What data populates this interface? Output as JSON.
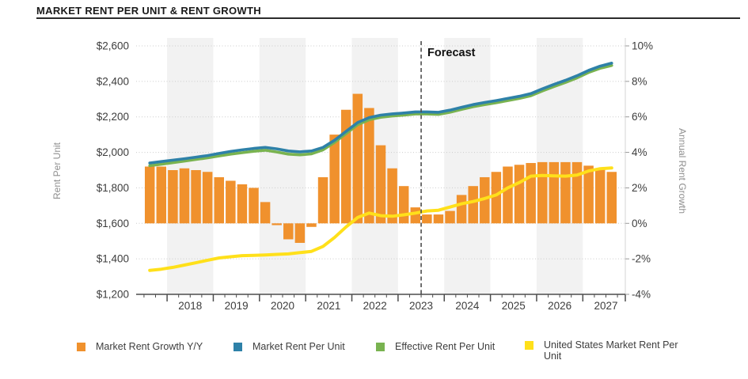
{
  "header": {
    "title": "MARKET RENT PER UNIT & RENT GROWTH"
  },
  "chart_data": {
    "type": "combo",
    "title": "MARKET RENT PER UNIT & RENT GROWTH",
    "forecast": {
      "label": "Forecast",
      "t": 2023.5
    },
    "x_axis": {
      "domain": [
        2017.33,
        2027.92
      ],
      "tick_labels": [
        "2018",
        "2019",
        "2020",
        "2021",
        "2022",
        "2023",
        "2024",
        "2025",
        "2026",
        "2027"
      ],
      "shaded_years": [
        2018,
        2020,
        2022,
        2024,
        2026
      ]
    },
    "y_left": {
      "label": "Rent Per Unit",
      "min": 1200,
      "max": 2600,
      "step": 200,
      "tick_labels": [
        "$2,600",
        "$2,400",
        "$2,200",
        "$2,000",
        "$1,800",
        "$1,600",
        "$1,400",
        "$1,200"
      ]
    },
    "y_right": {
      "label": "Annual Rent Growth",
      "min": -4,
      "max": 10,
      "step": 2,
      "tick_labels": [
        "10%",
        "8%",
        "6%",
        "4%",
        "2%",
        "0%",
        "-2%",
        "-4%"
      ]
    },
    "quarters_start_t": 2017.625,
    "quarters": [
      "2017 Q3",
      "2017 Q4",
      "2018 Q1",
      "2018 Q2",
      "2018 Q3",
      "2018 Q4",
      "2019 Q1",
      "2019 Q2",
      "2019 Q3",
      "2019 Q4",
      "2020 Q1",
      "2020 Q2",
      "2020 Q3",
      "2020 Q4",
      "2021 Q1",
      "2021 Q2",
      "2021 Q3",
      "2021 Q4",
      "2022 Q1",
      "2022 Q2",
      "2022 Q3",
      "2022 Q4",
      "2023 Q1",
      "2023 Q2",
      "2023 Q3",
      "2023 Q4",
      "2024 Q1",
      "2024 Q2",
      "2024 Q3",
      "2024 Q4",
      "2025 Q1",
      "2025 Q2",
      "2025 Q3",
      "2025 Q4",
      "2026 Q1",
      "2026 Q2",
      "2026 Q3",
      "2026 Q4",
      "2027 Q1",
      "2027 Q2",
      "2027 Q3"
    ],
    "series": [
      {
        "name": "Market Rent Growth Y/Y",
        "key": "market-rent-growth-yy",
        "type": "bar",
        "axis": "right",
        "color": "#F0912D",
        "values": [
          3.2,
          3.2,
          3.0,
          3.1,
          3.0,
          2.9,
          2.6,
          2.4,
          2.2,
          2.0,
          1.2,
          -0.1,
          -0.9,
          -1.1,
          -0.2,
          2.6,
          5.0,
          6.4,
          7.3,
          6.5,
          4.4,
          3.1,
          2.1,
          0.9,
          0.5,
          0.5,
          0.7,
          1.6,
          2.1,
          2.6,
          2.9,
          3.2,
          3.3,
          3.4,
          3.45,
          3.45,
          3.45,
          3.45,
          3.25,
          3.1,
          2.9
        ]
      },
      {
        "name": "Market Rent Per Unit",
        "key": "market-rent-per-unit",
        "type": "line",
        "axis": "left",
        "color": "#2E81A8",
        "values": [
          1940,
          1948,
          1956,
          1964,
          1973,
          1982,
          1994,
          2005,
          2014,
          2022,
          2028,
          2020,
          2008,
          2003,
          2008,
          2028,
          2068,
          2118,
          2168,
          2196,
          2210,
          2217,
          2222,
          2228,
          2228,
          2226,
          2238,
          2254,
          2269,
          2281,
          2292,
          2304,
          2316,
          2331,
          2358,
          2383,
          2406,
          2432,
          2462,
          2486,
          2503
        ]
      },
      {
        "name": "Effective Rent Per Unit",
        "key": "effective-rent-per-unit",
        "type": "line",
        "axis": "left",
        "color": "#79B350",
        "values": [
          1925,
          1933,
          1942,
          1951,
          1960,
          1969,
          1980,
          1990,
          1998,
          2006,
          2012,
          2002,
          1990,
          1986,
          1992,
          2014,
          2056,
          2106,
          2156,
          2184,
          2198,
          2205,
          2210,
          2216,
          2216,
          2214,
          2226,
          2242,
          2257,
          2269,
          2280,
          2292,
          2304,
          2319,
          2346,
          2371,
          2394,
          2420,
          2450,
          2474,
          2490
        ]
      },
      {
        "name": "United States Market Rent Per Unit",
        "key": "us-market-rent-per-unit",
        "type": "line",
        "axis": "left",
        "color": "#FFE01A",
        "values": [
          1335,
          1342,
          1352,
          1365,
          1378,
          1392,
          1405,
          1412,
          1418,
          1420,
          1422,
          1425,
          1428,
          1435,
          1442,
          1470,
          1520,
          1580,
          1633,
          1658,
          1643,
          1640,
          1648,
          1658,
          1670,
          1674,
          1692,
          1710,
          1723,
          1740,
          1760,
          1800,
          1830,
          1866,
          1870,
          1868,
          1866,
          1872,
          1895,
          1908,
          1912
        ]
      }
    ],
    "colors": {
      "band": "#F2F2F2",
      "grid": "#CCCCCC",
      "axis": "#4D4D4D",
      "right_axis_line": "#D6D6D6",
      "tick_label": "#3D3D3D",
      "axis_title": "#8F8F8F",
      "forecast_line": "#4D4D4D",
      "forecast_text": "#111111"
    },
    "legend_position": "bottom"
  }
}
